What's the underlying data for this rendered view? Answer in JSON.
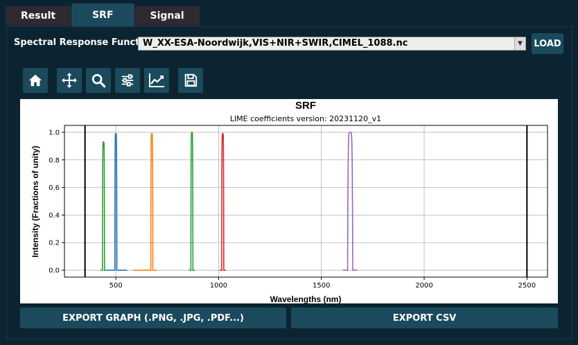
{
  "tabs": [
    {
      "label": "Result",
      "active": false
    },
    {
      "label": "SRF",
      "active": true
    },
    {
      "label": "Signal",
      "active": false
    }
  ],
  "srf": {
    "label": "Spectral Response Function:",
    "selected": "W_XX-ESA-Noordwijk,VIS+NIR+SWIR,CIMEL_1088.nc",
    "load_label": "LOAD"
  },
  "toolbar": {
    "icons": [
      "home-icon",
      "move-icon",
      "zoom-icon",
      "settings-sliders-icon",
      "chart-line-icon",
      "save-icon"
    ]
  },
  "export": {
    "graph_label": "EXPORT GRAPH (.PNG, .JPG, .PDF...)",
    "csv_label": "EXPORT CSV"
  },
  "colors": {
    "background": "#0c2432",
    "button": "#1b4a5c",
    "tab_inactive": "#2f2a30"
  },
  "chart_data": {
    "type": "line",
    "title": "SRF",
    "subtitle": "LIME coefficients version: 20231120_v1",
    "xlabel": "Wavelengths (nm)",
    "ylabel": "Intensity (Fractions of unity)",
    "xlim": [
      250,
      2600
    ],
    "ylim": [
      -0.05,
      1.05
    ],
    "xticks": [
      500,
      1000,
      1500,
      2000,
      2500
    ],
    "yticks": [
      0.0,
      0.2,
      0.4,
      0.6,
      0.8,
      1.0
    ],
    "xtick_labels": [
      "500",
      "1000",
      "1500",
      "2000",
      "2500"
    ],
    "ytick_labels": [
      "0.0",
      "0.2",
      "0.4",
      "0.6",
      "0.8",
      "1.0"
    ],
    "grid": true,
    "vlines": [
      350,
      2500
    ],
    "series": [
      {
        "center": 440,
        "peak": 0.93,
        "width": 10,
        "base_from": 425,
        "base_to": 455,
        "color": "#2ca02c"
      },
      {
        "center": 500,
        "peak": 0.99,
        "width": 10,
        "base_from": 455,
        "base_to": 555,
        "color": "#1f77b4"
      },
      {
        "center": 675,
        "peak": 0.99,
        "width": 10,
        "base_from": 585,
        "base_to": 700,
        "color": "#ff7f0e"
      },
      {
        "center": 870,
        "peak": 1.0,
        "width": 10,
        "base_from": 855,
        "base_to": 885,
        "color": "#2ca02c"
      },
      {
        "center": 1020,
        "peak": 0.99,
        "width": 10,
        "base_from": 1005,
        "base_to": 1035,
        "color": "#d62728"
      },
      {
        "center": 1640,
        "peak": 1.0,
        "width": 25,
        "base_from": 1605,
        "base_to": 1675,
        "color": "#9467bd"
      }
    ]
  }
}
